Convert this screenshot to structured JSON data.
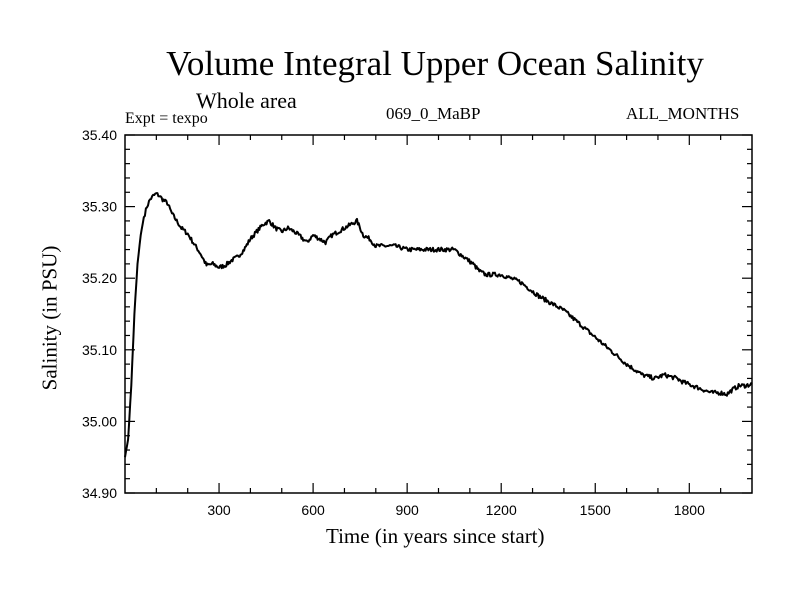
{
  "chart_data": {
    "type": "line",
    "title": "Volume Integral Upper Ocean Salinity",
    "subtitle": "Whole area",
    "expt_label": "Expt = texpo",
    "run_id": "069_0_MaBP",
    "months_label": "ALL_MONTHS",
    "xlabel": "Time (in years since start)",
    "ylabel": "Salinity (in PSU)",
    "xlim": [
      0,
      2000
    ],
    "ylim": [
      34.9,
      35.4
    ],
    "xticks": [
      300,
      600,
      900,
      1200,
      1500,
      1800
    ],
    "xtick_labels": [
      "300",
      "600",
      "900",
      "1200",
      "1500",
      "1800"
    ],
    "yticks": [
      34.9,
      35.0,
      35.1,
      35.2,
      35.3,
      35.4
    ],
    "ytick_labels": [
      "34.90",
      "35.00",
      "35.10",
      "35.20",
      "35.30",
      "35.40"
    ],
    "line_color": "#000000",
    "series": [
      {
        "name": "salinity",
        "x": [
          0,
          10,
          20,
          30,
          40,
          50,
          60,
          70,
          80,
          90,
          100,
          110,
          120,
          135,
          150,
          165,
          180,
          200,
          220,
          240,
          260,
          280,
          300,
          320,
          340,
          360,
          380,
          400,
          420,
          440,
          460,
          480,
          500,
          520,
          540,
          560,
          580,
          600,
          620,
          640,
          660,
          680,
          700,
          720,
          740,
          760,
          780,
          800,
          830,
          860,
          900,
          950,
          1000,
          1050,
          1080,
          1110,
          1130,
          1150,
          1180,
          1200,
          1230,
          1260,
          1290,
          1320,
          1360,
          1400,
          1440,
          1480,
          1520,
          1560,
          1600,
          1650,
          1690,
          1720,
          1760,
          1780,
          1810,
          1840,
          1870,
          1900,
          1920,
          1940,
          1960,
          1980,
          2000
        ],
        "values": [
          34.95,
          34.975,
          35.05,
          35.15,
          35.22,
          35.26,
          35.285,
          35.3,
          35.31,
          35.315,
          35.318,
          35.315,
          35.31,
          35.305,
          35.29,
          35.28,
          35.27,
          35.262,
          35.248,
          35.235,
          35.218,
          35.22,
          35.215,
          35.218,
          35.225,
          35.23,
          35.24,
          35.255,
          35.265,
          35.275,
          35.28,
          35.27,
          35.265,
          35.27,
          35.265,
          35.258,
          35.25,
          35.26,
          35.255,
          35.25,
          35.26,
          35.265,
          35.27,
          35.275,
          35.28,
          35.26,
          35.255,
          35.245,
          35.245,
          35.245,
          35.24,
          35.24,
          35.24,
          35.24,
          35.23,
          35.22,
          35.21,
          35.205,
          35.205,
          35.205,
          35.2,
          35.195,
          35.185,
          35.175,
          35.165,
          35.155,
          35.14,
          35.125,
          35.11,
          35.095,
          35.08,
          35.065,
          35.06,
          35.065,
          35.06,
          35.055,
          35.05,
          35.045,
          35.04,
          35.04,
          35.038,
          35.045,
          35.05,
          35.05,
          35.052
        ]
      }
    ]
  }
}
